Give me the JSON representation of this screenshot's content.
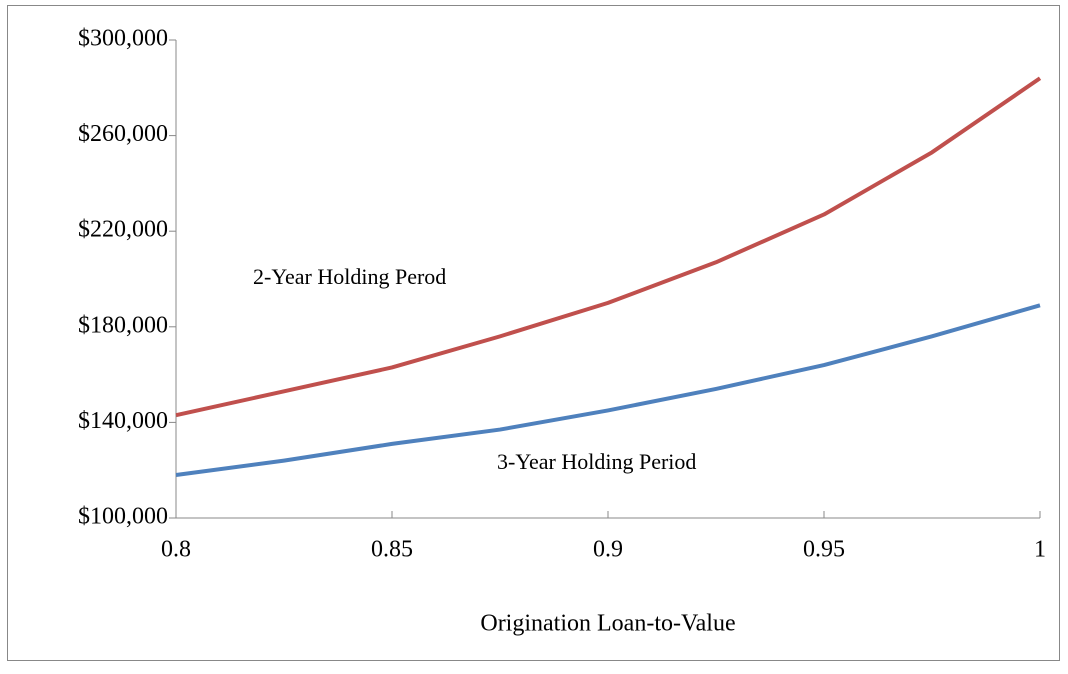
{
  "chart_data": {
    "type": "line",
    "x_label": "Origination Loan-to-Value",
    "x": [
      0.8,
      0.825,
      0.85,
      0.875,
      0.9,
      0.925,
      0.95,
      0.975,
      1
    ],
    "series": [
      {
        "name": "2-Year Holding Perod",
        "color": "#c0504d",
        "values": [
          143000,
          153000,
          163000,
          176000,
          190000,
          207000,
          227000,
          253000,
          284000
        ]
      },
      {
        "name": "3-Year Holding Period",
        "color": "#4f81bd",
        "values": [
          118000,
          124000,
          131000,
          137000,
          145000,
          154000,
          164000,
          176000,
          189000
        ]
      }
    ],
    "xlim": [
      0.8,
      1
    ],
    "xticks": [
      0.8,
      0.85,
      0.9,
      0.95,
      1
    ],
    "ylim": [
      100000,
      300000
    ],
    "yticks": [
      {
        "value": 100000,
        "label": "$100,000"
      },
      {
        "value": 140000,
        "label": "$140,000"
      },
      {
        "value": 180000,
        "label": "$180,000"
      },
      {
        "value": 220000,
        "label": "$220,000"
      },
      {
        "value": 260000,
        "label": "$260,000"
      },
      {
        "value": 300000,
        "label": "$300,000"
      }
    ],
    "grid": false
  }
}
